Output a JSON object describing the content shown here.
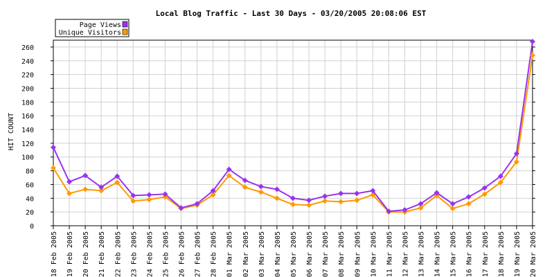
{
  "chart_data": {
    "type": "line",
    "title": "Local Blog Traffic - Last 30 Days - 03/20/2005 20:08:06 EST",
    "xlabel": "",
    "ylabel": "HIT COUNT",
    "ylim": [
      0,
      270
    ],
    "yticks": [
      0,
      20,
      40,
      60,
      80,
      100,
      120,
      140,
      160,
      180,
      200,
      220,
      240,
      260
    ],
    "grid": true,
    "legend_position": "top-left",
    "categories": [
      "18 Feb 2005",
      "19 Feb 2005",
      "20 Feb 2005",
      "21 Feb 2005",
      "22 Feb 2005",
      "23 Feb 2005",
      "24 Feb 2005",
      "25 Feb 2005",
      "26 Feb 2005",
      "27 Feb 2005",
      "28 Feb 2005",
      "01 Mar 2005",
      "02 Mar 2005",
      "03 Mar 2005",
      "04 Mar 2005",
      "05 Mar 2005",
      "06 Mar 2005",
      "07 Mar 2005",
      "08 Mar 2005",
      "09 Mar 2005",
      "10 Mar 2005",
      "11 Mar 2005",
      "12 Mar 2005",
      "13 Mar 2005",
      "14 Mar 2005",
      "15 Mar 2005",
      "16 Mar 2005",
      "17 Mar 2005",
      "18 Mar 2005",
      "19 Mar 2005",
      "20 Mar 2005"
    ],
    "series": [
      {
        "name": "Page Views",
        "color": "#9933ee",
        "values": [
          114,
          64,
          73,
          56,
          72,
          44,
          45,
          46,
          26,
          32,
          51,
          82,
          66,
          57,
          53,
          40,
          37,
          43,
          47,
          47,
          51,
          21,
          23,
          32,
          48,
          32,
          42,
          55,
          72,
          105,
          268
        ]
      },
      {
        "name": "Unique Visitors",
        "color": "#ff9900",
        "values": [
          84,
          47,
          53,
          51,
          63,
          36,
          38,
          42,
          25,
          30,
          45,
          73,
          56,
          49,
          40,
          31,
          30,
          36,
          35,
          37,
          45,
          20,
          20,
          26,
          44,
          25,
          32,
          46,
          63,
          93,
          248
        ]
      }
    ]
  }
}
